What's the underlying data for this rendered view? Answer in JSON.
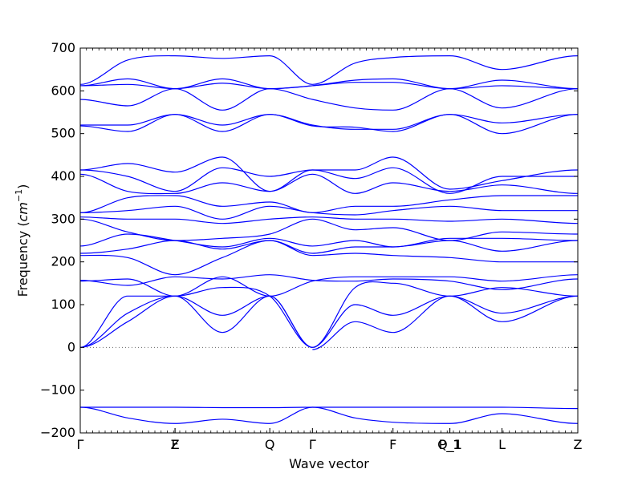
{
  "chart_data": {
    "type": "line",
    "title": "",
    "xlabel": "Wave vector",
    "ylabel_text": "Frequency (",
    "ylabel_math": "cm",
    "ylabel_sup": "−1",
    "ylabel_close": ")",
    "ylim": [
      -200,
      700
    ],
    "yticks": [
      -200,
      -100,
      0,
      100,
      200,
      300,
      400,
      500,
      600,
      700
    ],
    "ytick_labels": [
      "−200",
      "−100",
      "0",
      "100",
      "200",
      "300",
      "400",
      "500",
      "600",
      "700"
    ],
    "high_symmetry_points": [
      {
        "label": "Γ",
        "x": 0.0
      },
      {
        "label": "Z",
        "x": 1.0
      },
      {
        "label": "F",
        "x": 1.0
      },
      {
        "label": "Q",
        "x": 2.0
      },
      {
        "label": "Γ",
        "x": 2.45
      },
      {
        "label": "F",
        "x": 3.3
      },
      {
        "label": "P_1",
        "x": 3.9
      },
      {
        "label": "Q_1",
        "x": 3.9
      },
      {
        "label": "L",
        "x": 4.45
      },
      {
        "label": "Z",
        "x": 5.25
      }
    ],
    "zero_line": true,
    "line_color": "#0000ff",
    "series": [
      {
        "x": [
          0,
          0.5,
          1,
          1.5,
          2,
          2.45,
          3.3,
          3.9,
          4.45,
          5.25
        ],
        "values": [
          -140,
          -140,
          -140,
          -141,
          -141,
          -140,
          -140,
          -140,
          -140,
          -143
        ]
      },
      {
        "x": [
          0,
          0.5,
          1,
          1.5,
          2,
          2.45,
          2.9,
          3.3,
          3.9,
          4.45,
          5.25
        ],
        "values": [
          -140,
          -165,
          -178,
          -168,
          -178,
          -140,
          -165,
          -175,
          -178,
          -155,
          -178
        ]
      },
      {
        "x": [
          0,
          0.5,
          1,
          1.5,
          2,
          2.45
        ],
        "values": [
          0,
          60,
          120,
          35,
          120,
          0
        ]
      },
      {
        "x": [
          0,
          0.5,
          1,
          1.5,
          2,
          2.45
        ],
        "values": [
          0,
          80,
          120,
          75,
          120,
          0
        ]
      },
      {
        "x": [
          0,
          0.5,
          1,
          1.5,
          2,
          2.45
        ],
        "values": [
          0,
          120,
          120,
          140,
          120,
          0
        ]
      },
      {
        "x": [
          2.45,
          2.9,
          3.3,
          3.9,
          4.45,
          5.25
        ],
        "values": [
          -5,
          60,
          35,
          120,
          60,
          120
        ]
      },
      {
        "x": [
          2.45,
          2.9,
          3.3,
          3.9,
          4.45,
          5.25
        ],
        "values": [
          0,
          100,
          75,
          120,
          80,
          120
        ]
      },
      {
        "x": [
          2.45,
          2.9,
          3.3,
          3.9,
          4.45,
          5.25
        ],
        "values": [
          0,
          140,
          150,
          120,
          140,
          120
        ]
      },
      {
        "x": [
          0,
          0.5,
          1,
          1.5,
          2,
          2.45,
          2.9,
          3.3,
          3.9,
          4.45,
          5.25
        ],
        "values": [
          157,
          145,
          165,
          160,
          170,
          157,
          155,
          160,
          155,
          135,
          160
        ]
      },
      {
        "x": [
          0,
          0.5,
          1,
          1.5,
          2,
          2.45,
          2.9,
          3.3,
          3.9,
          4.45,
          5.25
        ],
        "values": [
          155,
          160,
          120,
          165,
          120,
          155,
          165,
          165,
          165,
          155,
          170
        ]
      },
      {
        "x": [
          0,
          0.5,
          1,
          1.5,
          2,
          2.45,
          2.9,
          3.3,
          3.9,
          4.45,
          5.25
        ],
        "values": [
          215,
          210,
          170,
          210,
          250,
          215,
          220,
          215,
          210,
          200,
          200
        ]
      },
      {
        "x": [
          0,
          0.5,
          1,
          1.5,
          2,
          2.45,
          2.9,
          3.3,
          3.9,
          4.45,
          5.25
        ],
        "values": [
          220,
          230,
          250,
          230,
          250,
          220,
          235,
          235,
          250,
          225,
          250
        ]
      },
      {
        "x": [
          0,
          0.5,
          1,
          1.5,
          2,
          2.45,
          2.9,
          3.3,
          3.9,
          4.45,
          5.25
        ],
        "values": [
          237,
          265,
          250,
          235,
          255,
          237,
          250,
          235,
          255,
          255,
          250
        ]
      },
      {
        "x": [
          0,
          0.5,
          1,
          1.5,
          2,
          2.45,
          2.9,
          3.3,
          3.9,
          4.45,
          5.25
        ],
        "values": [
          300,
          270,
          250,
          255,
          265,
          300,
          275,
          280,
          250,
          270,
          265
        ]
      },
      {
        "x": [
          0,
          0.5,
          1,
          1.5,
          2,
          2.45,
          2.9,
          3.3,
          3.9,
          4.45,
          5.25
        ],
        "values": [
          305,
          300,
          300,
          290,
          300,
          305,
          300,
          300,
          295,
          300,
          290
        ]
      },
      {
        "x": [
          0,
          0.5,
          1,
          1.5,
          2,
          2.45,
          2.9,
          3.3,
          3.9,
          4.45,
          5.25
        ],
        "values": [
          315,
          320,
          330,
          300,
          330,
          315,
          310,
          320,
          330,
          320,
          320
        ]
      },
      {
        "x": [
          0,
          0.5,
          1,
          1.5,
          2,
          2.45,
          2.9,
          3.3,
          3.9,
          4.45,
          5.25
        ],
        "values": [
          315,
          350,
          355,
          330,
          340,
          315,
          330,
          330,
          345,
          355,
          355
        ]
      },
      {
        "x": [
          0,
          0.5,
          1,
          1.5,
          2,
          2.45,
          2.9,
          3.3,
          3.9,
          4.45,
          5.25
        ],
        "values": [
          405,
          365,
          360,
          385,
          365,
          405,
          360,
          385,
          365,
          380,
          360
        ]
      },
      {
        "x": [
          0,
          0.5,
          1,
          1.5,
          2,
          2.45,
          2.9,
          3.3,
          3.9,
          4.45,
          5.25
        ],
        "values": [
          415,
          430,
          410,
          445,
          365,
          415,
          415,
          445,
          370,
          390,
          415
        ]
      },
      {
        "x": [
          0,
          0.5,
          1,
          1.5,
          2,
          2.45,
          2.9,
          3.3,
          3.9,
          4.45,
          5.25
        ],
        "values": [
          415,
          400,
          365,
          420,
          400,
          415,
          395,
          420,
          360,
          400,
          400
        ]
      },
      {
        "x": [
          0,
          0.5,
          1,
          1.5,
          2,
          2.45,
          2.9,
          3.3,
          3.9,
          4.45,
          5.25
        ],
        "values": [
          518,
          505,
          545,
          505,
          545,
          518,
          515,
          505,
          545,
          500,
          545
        ]
      },
      {
        "x": [
          0,
          0.5,
          1,
          1.5,
          2,
          2.45,
          2.9,
          3.3,
          3.9,
          4.45,
          5.25
        ],
        "values": [
          520,
          520,
          545,
          520,
          545,
          520,
          510,
          510,
          545,
          525,
          545
        ]
      },
      {
        "x": [
          0,
          0.5,
          1,
          1.5,
          2,
          2.45,
          2.9,
          3.3,
          3.9,
          4.45,
          5.25
        ],
        "values": [
          580,
          565,
          605,
          555,
          605,
          580,
          560,
          555,
          605,
          560,
          605
        ]
      },
      {
        "x": [
          0,
          0.5,
          1,
          1.5,
          2,
          2.45,
          2.9,
          3.3,
          3.9,
          4.45,
          5.25
        ],
        "values": [
          612,
          628,
          605,
          628,
          605,
          612,
          625,
          628,
          605,
          625,
          605
        ]
      },
      {
        "x": [
          0,
          0.5,
          1,
          1.5,
          2,
          2.45,
          2.9,
          3.3,
          3.9,
          4.45,
          5.25
        ],
        "values": [
          612,
          615,
          605,
          618,
          605,
          612,
          620,
          620,
          605,
          612,
          605
        ]
      },
      {
        "x": [
          0,
          0.5,
          1,
          1.5,
          2,
          2.45,
          2.9,
          3.3,
          3.9,
          4.45,
          5.25
        ],
        "values": [
          615,
          672,
          682,
          676,
          682,
          615,
          665,
          678,
          682,
          650,
          682
        ]
      }
    ]
  }
}
